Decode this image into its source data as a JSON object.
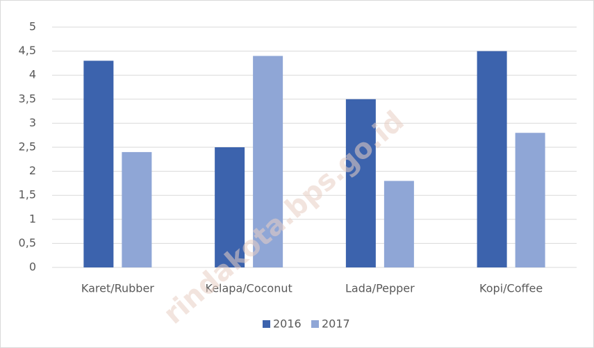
{
  "chart_data": {
    "type": "bar",
    "categories": [
      "Karet/Rubber",
      "Kelapa/Coconut",
      "Lada/Pepper",
      "Kopi/Coffee"
    ],
    "series": [
      {
        "name": "2016",
        "color": "#3c63ad",
        "values": [
          4.3,
          2.5,
          3.5,
          4.5
        ]
      },
      {
        "name": "2017",
        "color": "#8fa6d6",
        "values": [
          2.4,
          4.4,
          1.8,
          2.8
        ]
      }
    ],
    "ylim": [
      0,
      5
    ],
    "yticks": [
      0,
      {
        "value": 0.5,
        "label": "0,5"
      },
      1,
      {
        "value": 1.5,
        "label": "1,5"
      },
      2,
      {
        "value": 2.5,
        "label": "2,5"
      },
      3,
      {
        "value": 3.5,
        "label": "3,5"
      },
      4,
      {
        "value": 4.5,
        "label": "4,5"
      },
      5
    ],
    "grid": true,
    "legend": "bottom",
    "watermark": "rindakota.bps.go.id"
  }
}
